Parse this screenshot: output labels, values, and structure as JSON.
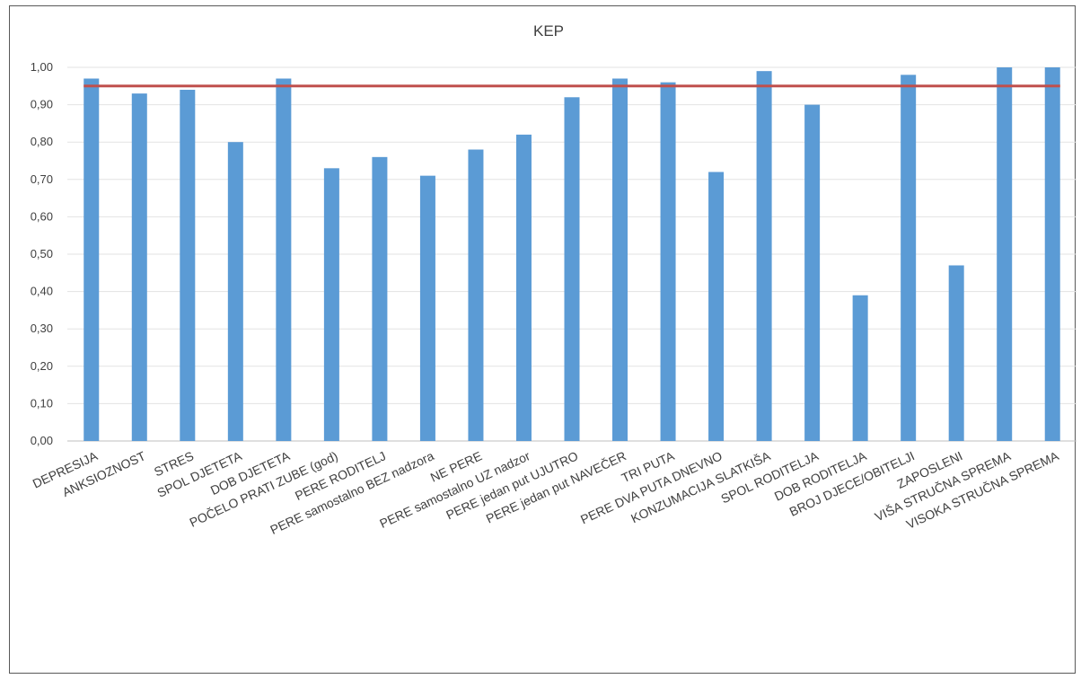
{
  "chart_data": {
    "type": "bar",
    "title": "KEP",
    "xlabel": "",
    "ylabel": "",
    "ylim": [
      0,
      1.0
    ],
    "yticks": [
      "0,00",
      "0,10",
      "0,20",
      "0,30",
      "0,40",
      "0,50",
      "0,60",
      "0,70",
      "0,80",
      "0,90",
      "1,00"
    ],
    "grid": true,
    "bar_color": "#5B9BD5",
    "reference_line": {
      "value": 0.95,
      "color": "#C0504D"
    },
    "categories": [
      "DEPRESIJA",
      "ANKSIOZNOST",
      "STRES",
      "SPOL DJETETA",
      "DOB DJETETA",
      "POČELO PRATI ZUBE (god)",
      "PERE RODITELJ",
      "PERE samostalno BEZ nadzora",
      "NE PERE",
      "PERE samostalno UZ nadzor",
      "PERE jedan put UJUTRO",
      "PERE jedan put NAVEČER",
      "TRI PUTA",
      "PERE DVA PUTA DNEVNO",
      "KONZUMACIJA SLATKIŠA",
      "SPOL RODITELJA",
      "DOB RODITELJA",
      "BROJ DJECE/OBITELJI",
      "ZAPOSLENI",
      "VIŠA STRUČNA SPREMA",
      "VISOKA STRUČNA SPREMA"
    ],
    "values": [
      0.97,
      0.93,
      0.94,
      0.8,
      0.97,
      0.73,
      0.76,
      0.71,
      0.78,
      0.82,
      0.92,
      0.97,
      0.96,
      0.72,
      0.99,
      0.9,
      0.39,
      0.98,
      0.47,
      1.0,
      1.0
    ]
  }
}
